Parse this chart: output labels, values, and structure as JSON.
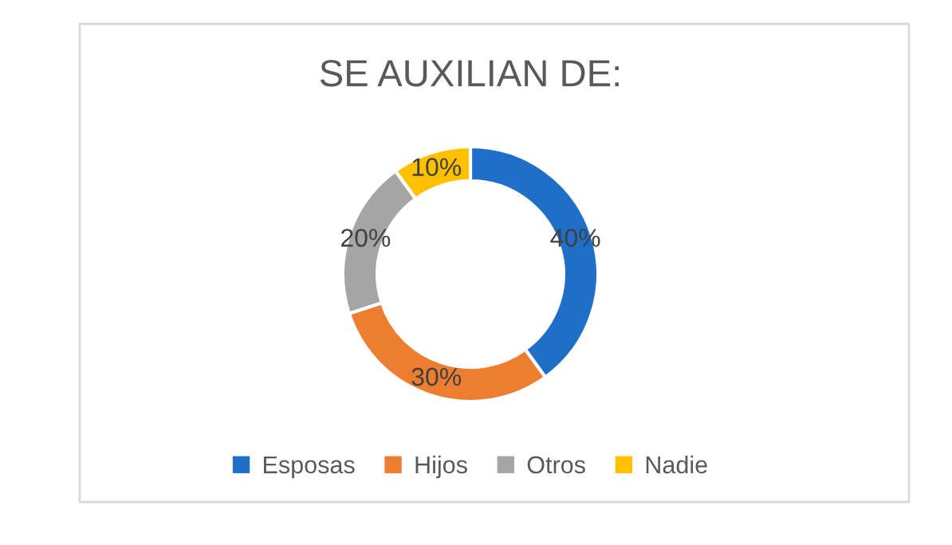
{
  "chart_data": {
    "type": "donut",
    "title": "SE AUXILIAN DE:",
    "categories": [
      "Esposas",
      "Hijos",
      "Otros",
      "Nadie"
    ],
    "values": [
      40,
      30,
      20,
      10
    ],
    "colors": [
      "#1f6fc8",
      "#ed7d31",
      "#a5a5a5",
      "#ffc000"
    ],
    "value_labels": [
      "40%",
      "30%",
      "20%",
      "10%"
    ],
    "legend": "bottom"
  }
}
